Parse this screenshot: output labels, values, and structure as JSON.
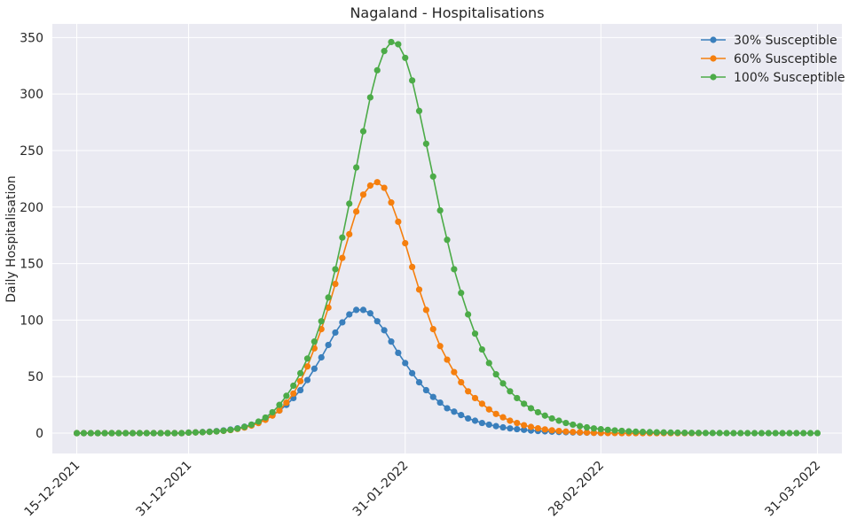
{
  "chart_data": {
    "type": "line",
    "title": "Nagaland - Hospitalisations",
    "xlabel": "",
    "ylabel": "Daily Hospitalisation",
    "x_start": "2021-12-15",
    "x_end": "2022-03-31",
    "ylim": [
      -18,
      362
    ],
    "yticks": [
      0,
      50,
      100,
      150,
      200,
      250,
      300,
      350
    ],
    "xticks": [
      {
        "date": "2021-12-15",
        "label": "15-12-2021"
      },
      {
        "date": "2021-12-31",
        "label": "31-12-2021"
      },
      {
        "date": "2022-01-31",
        "label": "31-01-2022"
      },
      {
        "date": "2022-02-28",
        "label": "28-02-2022"
      },
      {
        "date": "2022-03-31",
        "label": "31-03-2022"
      }
    ],
    "grid": true,
    "legend_position": "top-right",
    "colors": {
      "background": "#eaeaf2",
      "grid": "#ffffff"
    },
    "series": [
      {
        "name": "30% Susceptible",
        "color": "#3a7fbc",
        "points": [
          [
            "2021-12-15",
            0
          ],
          [
            "2021-12-16",
            0
          ],
          [
            "2021-12-17",
            0
          ],
          [
            "2021-12-18",
            0
          ],
          [
            "2021-12-19",
            0
          ],
          [
            "2021-12-20",
            0
          ],
          [
            "2021-12-21",
            0
          ],
          [
            "2021-12-22",
            0
          ],
          [
            "2021-12-23",
            0
          ],
          [
            "2021-12-24",
            0
          ],
          [
            "2021-12-25",
            0
          ],
          [
            "2021-12-26",
            0
          ],
          [
            "2021-12-27",
            0
          ],
          [
            "2021-12-28",
            0
          ],
          [
            "2021-12-29",
            0
          ],
          [
            "2021-12-30",
            0
          ],
          [
            "2021-12-31",
            0.5
          ],
          [
            "2022-01-01",
            0.7
          ],
          [
            "2022-01-02",
            1
          ],
          [
            "2022-01-03",
            1.3
          ],
          [
            "2022-01-04",
            1.8
          ],
          [
            "2022-01-05",
            2.4
          ],
          [
            "2022-01-06",
            3.2
          ],
          [
            "2022-01-07",
            4.3
          ],
          [
            "2022-01-08",
            5.7
          ],
          [
            "2022-01-09",
            7.5
          ],
          [
            "2022-01-10",
            9.8
          ],
          [
            "2022-01-11",
            12.6
          ],
          [
            "2022-01-12",
            16
          ],
          [
            "2022-01-13",
            20
          ],
          [
            "2022-01-14",
            25
          ],
          [
            "2022-01-15",
            31
          ],
          [
            "2022-01-16",
            38
          ],
          [
            "2022-01-17",
            47
          ],
          [
            "2022-01-18",
            57
          ],
          [
            "2022-01-19",
            67
          ],
          [
            "2022-01-20",
            78
          ],
          [
            "2022-01-21",
            89
          ],
          [
            "2022-01-22",
            98
          ],
          [
            "2022-01-23",
            105
          ],
          [
            "2022-01-24",
            109
          ],
          [
            "2022-01-25",
            109
          ],
          [
            "2022-01-26",
            106
          ],
          [
            "2022-01-27",
            99
          ],
          [
            "2022-01-28",
            91
          ],
          [
            "2022-01-29",
            81
          ],
          [
            "2022-01-30",
            71
          ],
          [
            "2022-01-31",
            62
          ],
          [
            "2022-02-01",
            53
          ],
          [
            "2022-02-02",
            45
          ],
          [
            "2022-02-03",
            38
          ],
          [
            "2022-02-04",
            32
          ],
          [
            "2022-02-05",
            27
          ],
          [
            "2022-02-06",
            22
          ],
          [
            "2022-02-07",
            19
          ],
          [
            "2022-02-08",
            16
          ],
          [
            "2022-02-09",
            13
          ],
          [
            "2022-02-10",
            11
          ],
          [
            "2022-02-11",
            9
          ],
          [
            "2022-02-12",
            7.5
          ],
          [
            "2022-02-13",
            6.2
          ],
          [
            "2022-02-14",
            5.1
          ],
          [
            "2022-02-15",
            4.2
          ],
          [
            "2022-02-16",
            3.5
          ],
          [
            "2022-02-17",
            2.9
          ],
          [
            "2022-02-18",
            2.3
          ],
          [
            "2022-02-19",
            1.9
          ],
          [
            "2022-02-20",
            1.6
          ],
          [
            "2022-02-21",
            1.3
          ],
          [
            "2022-02-22",
            1
          ],
          [
            "2022-02-23",
            0.8
          ],
          [
            "2022-02-24",
            0.6
          ],
          [
            "2022-02-25",
            0.5
          ],
          [
            "2022-02-26",
            0.4
          ],
          [
            "2022-02-27",
            0.3
          ],
          [
            "2022-02-28",
            0.2
          ]
        ]
      },
      {
        "name": "60% Susceptible",
        "color": "#f57f0e",
        "points": [
          [
            "2021-12-15",
            0
          ],
          [
            "2021-12-16",
            0
          ],
          [
            "2021-12-17",
            0
          ],
          [
            "2021-12-18",
            0
          ],
          [
            "2021-12-19",
            0
          ],
          [
            "2021-12-20",
            0
          ],
          [
            "2021-12-21",
            0
          ],
          [
            "2021-12-22",
            0
          ],
          [
            "2021-12-23",
            0
          ],
          [
            "2021-12-24",
            0
          ],
          [
            "2021-12-25",
            0
          ],
          [
            "2021-12-26",
            0
          ],
          [
            "2021-12-27",
            0
          ],
          [
            "2021-12-28",
            0
          ],
          [
            "2021-12-29",
            0
          ],
          [
            "2021-12-30",
            0
          ],
          [
            "2021-12-31",
            0.4
          ],
          [
            "2022-01-01",
            0.6
          ],
          [
            "2022-01-02",
            0.8
          ],
          [
            "2022-01-03",
            1.1
          ],
          [
            "2022-01-04",
            1.5
          ],
          [
            "2022-01-05",
            2
          ],
          [
            "2022-01-06",
            2.7
          ],
          [
            "2022-01-07",
            3.7
          ],
          [
            "2022-01-08",
            5
          ],
          [
            "2022-01-09",
            6.7
          ],
          [
            "2022-01-10",
            8.9
          ],
          [
            "2022-01-11",
            11.8
          ],
          [
            "2022-01-12",
            15.5
          ],
          [
            "2022-01-13",
            20
          ],
          [
            "2022-01-14",
            27
          ],
          [
            "2022-01-15",
            35
          ],
          [
            "2022-01-16",
            46
          ],
          [
            "2022-01-17",
            59
          ],
          [
            "2022-01-18",
            75
          ],
          [
            "2022-01-19",
            92
          ],
          [
            "2022-01-20",
            111
          ],
          [
            "2022-01-21",
            132
          ],
          [
            "2022-01-22",
            155
          ],
          [
            "2022-01-23",
            176
          ],
          [
            "2022-01-24",
            196
          ],
          [
            "2022-01-25",
            211
          ],
          [
            "2022-01-26",
            219
          ],
          [
            "2022-01-27",
            222
          ],
          [
            "2022-01-28",
            217
          ],
          [
            "2022-01-29",
            204
          ],
          [
            "2022-01-30",
            187
          ],
          [
            "2022-01-31",
            168
          ],
          [
            "2022-02-01",
            147
          ],
          [
            "2022-02-02",
            127
          ],
          [
            "2022-02-03",
            109
          ],
          [
            "2022-02-04",
            92
          ],
          [
            "2022-02-05",
            77
          ],
          [
            "2022-02-06",
            65
          ],
          [
            "2022-02-07",
            54
          ],
          [
            "2022-02-08",
            45
          ],
          [
            "2022-02-09",
            37
          ],
          [
            "2022-02-10",
            31
          ],
          [
            "2022-02-11",
            26
          ],
          [
            "2022-02-12",
            21
          ],
          [
            "2022-02-13",
            17
          ],
          [
            "2022-02-14",
            14
          ],
          [
            "2022-02-15",
            11
          ],
          [
            "2022-02-16",
            9
          ],
          [
            "2022-02-17",
            7
          ],
          [
            "2022-02-18",
            5.5
          ],
          [
            "2022-02-19",
            4.3
          ],
          [
            "2022-02-20",
            3.3
          ],
          [
            "2022-02-21",
            2.5
          ],
          [
            "2022-02-22",
            1.9
          ],
          [
            "2022-02-23",
            1.4
          ],
          [
            "2022-02-24",
            1
          ],
          [
            "2022-02-25",
            0.7
          ],
          [
            "2022-02-26",
            0.5
          ],
          [
            "2022-02-27",
            0.3
          ],
          [
            "2022-02-28",
            0.2
          ],
          [
            "2022-03-01",
            0.1
          ],
          [
            "2022-03-02",
            0.1
          ],
          [
            "2022-03-03",
            0
          ],
          [
            "2022-03-04",
            0
          ],
          [
            "2022-03-05",
            0
          ],
          [
            "2022-03-06",
            0
          ],
          [
            "2022-03-07",
            0
          ],
          [
            "2022-03-08",
            0
          ],
          [
            "2022-03-09",
            0
          ],
          [
            "2022-03-10",
            0
          ],
          [
            "2022-03-11",
            0
          ],
          [
            "2022-03-12",
            0
          ],
          [
            "2022-03-13",
            0
          ],
          [
            "2022-03-14",
            0
          ]
        ]
      },
      {
        "name": "100% Susceptible",
        "color": "#4cab48",
        "points": [
          [
            "2021-12-15",
            0
          ],
          [
            "2021-12-16",
            0
          ],
          [
            "2021-12-17",
            0
          ],
          [
            "2021-12-18",
            0
          ],
          [
            "2021-12-19",
            0
          ],
          [
            "2021-12-20",
            0
          ],
          [
            "2021-12-21",
            0
          ],
          [
            "2021-12-22",
            0
          ],
          [
            "2021-12-23",
            0
          ],
          [
            "2021-12-24",
            0
          ],
          [
            "2021-12-25",
            0
          ],
          [
            "2021-12-26",
            0
          ],
          [
            "2021-12-27",
            0
          ],
          [
            "2021-12-28",
            0
          ],
          [
            "2021-12-29",
            0
          ],
          [
            "2021-12-30",
            0
          ],
          [
            "2021-12-31",
            0.4
          ],
          [
            "2022-01-01",
            0.6
          ],
          [
            "2022-01-02",
            0.8
          ],
          [
            "2022-01-03",
            1.1
          ],
          [
            "2022-01-04",
            1.5
          ],
          [
            "2022-01-05",
            2.1
          ],
          [
            "2022-01-06",
            2.9
          ],
          [
            "2022-01-07",
            4
          ],
          [
            "2022-01-08",
            5.5
          ],
          [
            "2022-01-09",
            7.5
          ],
          [
            "2022-01-10",
            10.2
          ],
          [
            "2022-01-11",
            13.8
          ],
          [
            "2022-01-12",
            18.5
          ],
          [
            "2022-01-13",
            25
          ],
          [
            "2022-01-14",
            33
          ],
          [
            "2022-01-15",
            42
          ],
          [
            "2022-01-16",
            53
          ],
          [
            "2022-01-17",
            66
          ],
          [
            "2022-01-18",
            81
          ],
          [
            "2022-01-19",
            99
          ],
          [
            "2022-01-20",
            120
          ],
          [
            "2022-01-21",
            145
          ],
          [
            "2022-01-22",
            173
          ],
          [
            "2022-01-23",
            203
          ],
          [
            "2022-01-24",
            235
          ],
          [
            "2022-01-25",
            267
          ],
          [
            "2022-01-26",
            297
          ],
          [
            "2022-01-27",
            321
          ],
          [
            "2022-01-28",
            338
          ],
          [
            "2022-01-29",
            346
          ],
          [
            "2022-01-30",
            344
          ],
          [
            "2022-01-31",
            332
          ],
          [
            "2022-02-01",
            312
          ],
          [
            "2022-02-02",
            285
          ],
          [
            "2022-02-03",
            256
          ],
          [
            "2022-02-04",
            227
          ],
          [
            "2022-02-05",
            197
          ],
          [
            "2022-02-06",
            171
          ],
          [
            "2022-02-07",
            145
          ],
          [
            "2022-02-08",
            124
          ],
          [
            "2022-02-09",
            105
          ],
          [
            "2022-02-10",
            88
          ],
          [
            "2022-02-11",
            74
          ],
          [
            "2022-02-12",
            62
          ],
          [
            "2022-02-13",
            52
          ],
          [
            "2022-02-14",
            44
          ],
          [
            "2022-02-15",
            37
          ],
          [
            "2022-02-16",
            31
          ],
          [
            "2022-02-17",
            26
          ],
          [
            "2022-02-18",
            22
          ],
          [
            "2022-02-19",
            18.5
          ],
          [
            "2022-02-20",
            15.5
          ],
          [
            "2022-02-21",
            13
          ],
          [
            "2022-02-22",
            11
          ],
          [
            "2022-02-23",
            9
          ],
          [
            "2022-02-24",
            7.5
          ],
          [
            "2022-02-25",
            6.2
          ],
          [
            "2022-02-26",
            5.1
          ],
          [
            "2022-02-27",
            4.2
          ],
          [
            "2022-02-28",
            3.5
          ],
          [
            "2022-03-01",
            2.9
          ],
          [
            "2022-03-02",
            2.4
          ],
          [
            "2022-03-03",
            2
          ],
          [
            "2022-03-04",
            1.6
          ],
          [
            "2022-03-05",
            1.3
          ],
          [
            "2022-03-06",
            1.1
          ],
          [
            "2022-03-07",
            0.9
          ],
          [
            "2022-03-08",
            0.7
          ],
          [
            "2022-03-09",
            0.6
          ],
          [
            "2022-03-10",
            0.5
          ],
          [
            "2022-03-11",
            0.4
          ],
          [
            "2022-03-12",
            0.3
          ],
          [
            "2022-03-13",
            0.2
          ],
          [
            "2022-03-14",
            0.2
          ],
          [
            "2022-03-15",
            0.1
          ],
          [
            "2022-03-16",
            0.1
          ],
          [
            "2022-03-17",
            0.1
          ],
          [
            "2022-03-18",
            0
          ],
          [
            "2022-03-19",
            0
          ],
          [
            "2022-03-20",
            0
          ],
          [
            "2022-03-21",
            0
          ],
          [
            "2022-03-22",
            0
          ],
          [
            "2022-03-23",
            0
          ],
          [
            "2022-03-24",
            0
          ],
          [
            "2022-03-25",
            0
          ],
          [
            "2022-03-26",
            0
          ],
          [
            "2022-03-27",
            0
          ],
          [
            "2022-03-28",
            0
          ],
          [
            "2022-03-29",
            0
          ],
          [
            "2022-03-30",
            0
          ],
          [
            "2022-03-31",
            0
          ]
        ]
      }
    ]
  }
}
